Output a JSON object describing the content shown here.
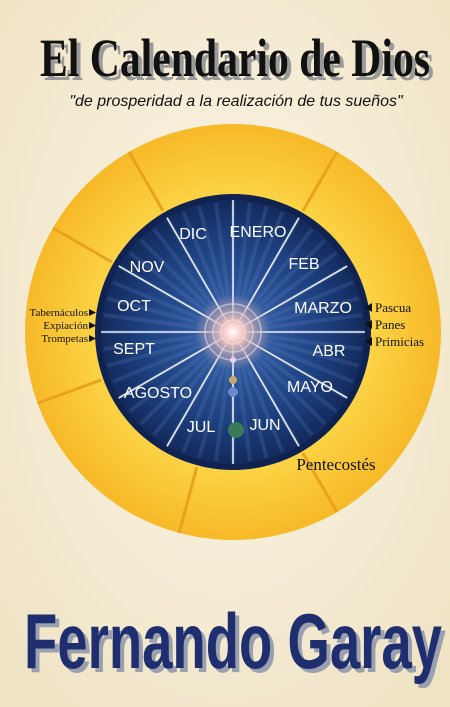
{
  "header": {
    "title": "El Calendario de Dios",
    "subtitle": "\"de prosperidad a la realización de tus sueños\""
  },
  "calendar": {
    "months": [
      "DIC",
      "ENERO",
      "FEB",
      "MARZO",
      "ABR",
      "MAYO",
      "JUN",
      "JUL",
      "AGOSTO",
      "SEPT",
      "OCT",
      "NOV"
    ],
    "fall_feasts": [
      "Tabernáculos",
      "Expiación",
      "Trompetas"
    ],
    "spring_feasts": [
      "Pascua",
      "Panes",
      "Primicias"
    ],
    "pentecost": "Pentecostés"
  },
  "author": "Fernando Garay"
}
